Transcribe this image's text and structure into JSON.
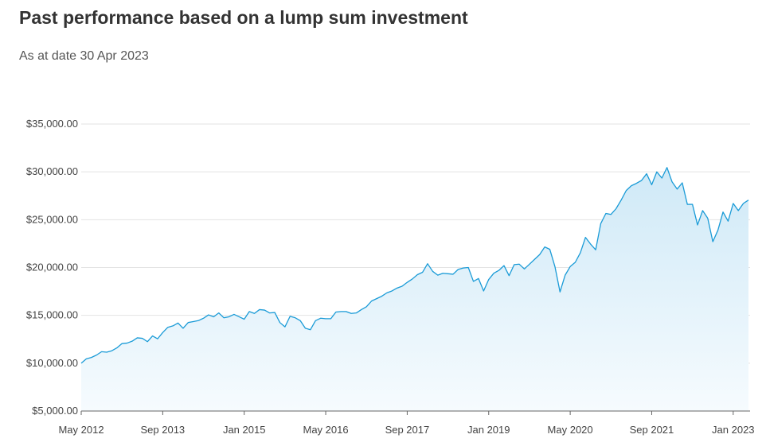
{
  "header": {
    "title": "Past performance based on a lump sum investment",
    "as_at": "As at date 30 Apr 2023"
  },
  "colors": {
    "line": "#1a9bd7",
    "area_top": "#cfe9f7",
    "area_bottom": "#f6fbfe",
    "grid": "#e3e3e3",
    "axis": "#666666"
  },
  "chart_data": {
    "type": "area",
    "title": "",
    "xlabel": "",
    "ylabel": "",
    "ylim": [
      5000,
      35000
    ],
    "xlim": [
      "2012-05",
      "2023-04"
    ],
    "grid": true,
    "yticks": [
      5000,
      10000,
      15000,
      20000,
      25000,
      30000,
      35000
    ],
    "ytick_labels": [
      "$5,000.00",
      "$10,000.00",
      "$15,000.00",
      "$20,000.00",
      "$25,000.00",
      "$30,000.00",
      "$35,000.00"
    ],
    "xticks": [
      "2012-05",
      "2013-09",
      "2015-01",
      "2016-05",
      "2017-09",
      "2019-01",
      "2020-05",
      "2021-09",
      "2023-01"
    ],
    "xtick_labels": [
      "May 2012",
      "Sep 2013",
      "Jan 2015",
      "May 2016",
      "Sep 2017",
      "Jan 2019",
      "May 2020",
      "Sep 2021",
      "Jan 2023"
    ],
    "series": [
      {
        "name": "",
        "x": [
          "2012-05",
          "2012-06",
          "2012-07",
          "2012-08",
          "2012-09",
          "2012-10",
          "2012-11",
          "2012-12",
          "2013-01",
          "2013-02",
          "2013-03",
          "2013-04",
          "2013-05",
          "2013-06",
          "2013-07",
          "2013-08",
          "2013-09",
          "2013-10",
          "2013-11",
          "2013-12",
          "2014-01",
          "2014-02",
          "2014-03",
          "2014-04",
          "2014-05",
          "2014-06",
          "2014-07",
          "2014-08",
          "2014-09",
          "2014-10",
          "2014-11",
          "2014-12",
          "2015-01",
          "2015-02",
          "2015-03",
          "2015-04",
          "2015-05",
          "2015-06",
          "2015-07",
          "2015-08",
          "2015-09",
          "2015-10",
          "2015-11",
          "2015-12",
          "2016-01",
          "2016-02",
          "2016-03",
          "2016-04",
          "2016-05",
          "2016-06",
          "2016-07",
          "2016-08",
          "2016-09",
          "2016-10",
          "2016-11",
          "2016-12",
          "2017-01",
          "2017-02",
          "2017-03",
          "2017-04",
          "2017-05",
          "2017-06",
          "2017-07",
          "2017-08",
          "2017-09",
          "2017-10",
          "2017-11",
          "2017-12",
          "2018-01",
          "2018-02",
          "2018-03",
          "2018-04",
          "2018-05",
          "2018-06",
          "2018-07",
          "2018-08",
          "2018-09",
          "2018-10",
          "2018-11",
          "2018-12",
          "2019-01",
          "2019-02",
          "2019-03",
          "2019-04",
          "2019-05",
          "2019-06",
          "2019-07",
          "2019-08",
          "2019-09",
          "2019-10",
          "2019-11",
          "2019-12",
          "2020-01",
          "2020-02",
          "2020-03",
          "2020-04",
          "2020-05",
          "2020-06",
          "2020-07",
          "2020-08",
          "2020-09",
          "2020-10",
          "2020-11",
          "2020-12",
          "2021-01",
          "2021-02",
          "2021-03",
          "2021-04",
          "2021-05",
          "2021-06",
          "2021-07",
          "2021-08",
          "2021-09",
          "2021-10",
          "2021-11",
          "2021-12",
          "2022-01",
          "2022-02",
          "2022-03",
          "2022-04",
          "2022-05",
          "2022-06",
          "2022-07",
          "2022-08",
          "2022-09",
          "2022-10",
          "2022-11",
          "2022-12",
          "2023-01",
          "2023-02",
          "2023-03",
          "2023-04"
        ],
        "values": [
          10000,
          10450,
          10600,
          10850,
          11200,
          11150,
          11300,
          11600,
          12050,
          12100,
          12300,
          12650,
          12600,
          12250,
          12850,
          12550,
          13200,
          13750,
          13900,
          14200,
          13650,
          14250,
          14350,
          14450,
          14700,
          15050,
          14850,
          15250,
          14750,
          14850,
          15100,
          14850,
          14600,
          15400,
          15200,
          15600,
          15550,
          15250,
          15300,
          14250,
          13800,
          14900,
          14750,
          14450,
          13650,
          13500,
          14450,
          14700,
          14650,
          14650,
          15350,
          15400,
          15400,
          15200,
          15250,
          15600,
          15900,
          16500,
          16750,
          17000,
          17350,
          17550,
          17850,
          18050,
          18450,
          18800,
          19250,
          19500,
          20400,
          19600,
          19200,
          19400,
          19350,
          19300,
          19800,
          19950,
          20000,
          18550,
          18850,
          17550,
          18750,
          19400,
          19700,
          20200,
          19150,
          20300,
          20350,
          19850,
          20350,
          20850,
          21350,
          22150,
          21900,
          20100,
          17450,
          19200,
          20100,
          20550,
          21550,
          23150,
          22450,
          21850,
          24600,
          25650,
          25550,
          26150,
          27050,
          28050,
          28550,
          28800,
          29100,
          29800,
          28650,
          30000,
          29350,
          30450,
          28950,
          28200,
          28850,
          26600,
          26600,
          24450,
          25950,
          25150,
          22700,
          23900,
          25800,
          24850,
          26700,
          25950,
          26700,
          27050
        ]
      }
    ]
  }
}
